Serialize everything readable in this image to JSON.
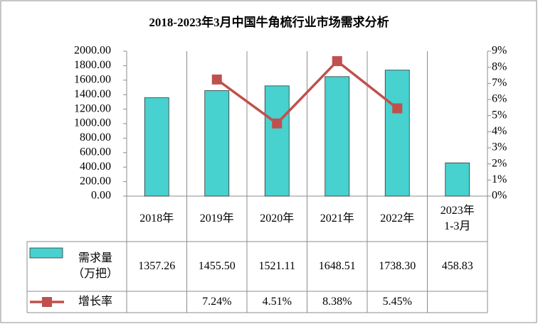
{
  "chart_data": {
    "type": "bar-line",
    "title": "2018-2023年3月中国牛角梳行业市场需求分析",
    "categories": [
      "2018年",
      "2019年",
      "2020年",
      "2021年",
      "2022年",
      "2023年\n1-3月"
    ],
    "series": [
      {
        "name": "需求量\n（万把）",
        "type": "bar",
        "color": "#47D1CF",
        "values": [
          1357.26,
          1455.5,
          1521.11,
          1648.51,
          1738.3,
          458.83
        ],
        "value_labels": [
          "1357.26",
          "1455.50",
          "1521.11",
          "1648.51",
          "1738.30",
          "458.83"
        ]
      },
      {
        "name": "增长率",
        "type": "line",
        "color": "#C0504D",
        "axis": "y2",
        "values": [
          null,
          7.24,
          4.51,
          8.38,
          5.45,
          null
        ],
        "value_labels": [
          null,
          "7.24%",
          "4.51%",
          "8.38%",
          "5.45%",
          null
        ]
      }
    ],
    "ylim": [
      0,
      2000
    ],
    "yticks": [
      {
        "value": 0,
        "label": "0.00"
      },
      {
        "value": 200,
        "label": "200.00"
      },
      {
        "value": 400,
        "label": "400.00"
      },
      {
        "value": 600,
        "label": "600.00"
      },
      {
        "value": 800,
        "label": "800.00"
      },
      {
        "value": 1000,
        "label": "1000.00"
      },
      {
        "value": 1200,
        "label": "1200.00"
      },
      {
        "value": 1400,
        "label": "1400.00"
      },
      {
        "value": 1600,
        "label": "1600.00"
      },
      {
        "value": 1800,
        "label": "1800.00"
      },
      {
        "value": 2000,
        "label": "2000.00"
      }
    ],
    "y2lim": [
      0,
      9
    ],
    "y2ticks": [
      {
        "value": 0,
        "label": "0%"
      },
      {
        "value": 1,
        "label": "1%"
      },
      {
        "value": 2,
        "label": "2%"
      },
      {
        "value": 3,
        "label": "3%"
      },
      {
        "value": 4,
        "label": "4%"
      },
      {
        "value": 5,
        "label": "5%"
      },
      {
        "value": 6,
        "label": "6%"
      },
      {
        "value": 7,
        "label": "7%"
      },
      {
        "value": 8,
        "label": "8%"
      },
      {
        "value": 9,
        "label": "9%"
      }
    ],
    "data_table": true
  }
}
